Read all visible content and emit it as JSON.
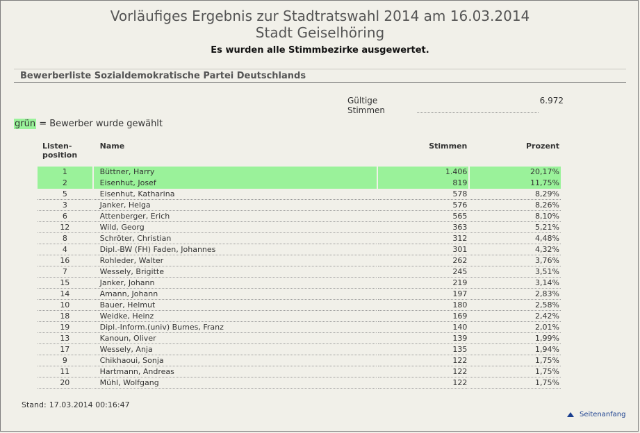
{
  "header": {
    "title": "Vorläufiges Ergebnis zur Stadtratswahl 2014 am 16.03.2014",
    "subtitle": "Stadt Geiselhöring",
    "status": "Es wurden alle Stimmbezirke ausgewertet."
  },
  "section": {
    "title": "Bewerberliste Sozialdemokratische Partei Deutschlands"
  },
  "valid_votes": {
    "label": "Gültige Stimmen",
    "value": "6.972"
  },
  "legend": {
    "highlight_word": "grün",
    "text": " = Bewerber wurde gewählt",
    "highlight_color": "#9af29a"
  },
  "table": {
    "headers": {
      "position_line1": "Listen-",
      "position_line2": "position",
      "name": "Name",
      "votes": "Stimmen",
      "percent": "Prozent"
    },
    "rows": [
      {
        "pos": "1",
        "name": "Büttner, Harry",
        "votes": "1.406",
        "percent": "20,17%",
        "elected": true
      },
      {
        "pos": "2",
        "name": "Eisenhut, Josef",
        "votes": "819",
        "percent": "11,75%",
        "elected": true
      },
      {
        "pos": "5",
        "name": "Eisenhut, Katharina",
        "votes": "578",
        "percent": "8,29%",
        "elected": false
      },
      {
        "pos": "3",
        "name": "Janker, Helga",
        "votes": "576",
        "percent": "8,26%",
        "elected": false
      },
      {
        "pos": "6",
        "name": "Attenberger, Erich",
        "votes": "565",
        "percent": "8,10%",
        "elected": false
      },
      {
        "pos": "12",
        "name": "Wild, Georg",
        "votes": "363",
        "percent": "5,21%",
        "elected": false
      },
      {
        "pos": "8",
        "name": "Schröter, Christian",
        "votes": "312",
        "percent": "4,48%",
        "elected": false
      },
      {
        "pos": "4",
        "name": "Dipl.-BW (FH) Faden, Johannes",
        "votes": "301",
        "percent": "4,32%",
        "elected": false
      },
      {
        "pos": "16",
        "name": "Rohleder, Walter",
        "votes": "262",
        "percent": "3,76%",
        "elected": false
      },
      {
        "pos": "7",
        "name": "Wessely, Brigitte",
        "votes": "245",
        "percent": "3,51%",
        "elected": false
      },
      {
        "pos": "15",
        "name": "Janker, Johann",
        "votes": "219",
        "percent": "3,14%",
        "elected": false
      },
      {
        "pos": "14",
        "name": "Amann, Johann",
        "votes": "197",
        "percent": "2,83%",
        "elected": false
      },
      {
        "pos": "10",
        "name": "Bauer, Helmut",
        "votes": "180",
        "percent": "2,58%",
        "elected": false
      },
      {
        "pos": "18",
        "name": "Weidke, Heinz",
        "votes": "169",
        "percent": "2,42%",
        "elected": false
      },
      {
        "pos": "19",
        "name": "Dipl.-Inform.(univ) Bumes, Franz",
        "votes": "140",
        "percent": "2,01%",
        "elected": false
      },
      {
        "pos": "13",
        "name": "Kanoun, Oliver",
        "votes": "139",
        "percent": "1,99%",
        "elected": false
      },
      {
        "pos": "17",
        "name": "Wessely, Anja",
        "votes": "135",
        "percent": "1,94%",
        "elected": false
      },
      {
        "pos": "9",
        "name": "Chikhaoui, Sonja",
        "votes": "122",
        "percent": "1,75%",
        "elected": false
      },
      {
        "pos": "11",
        "name": "Hartmann, Andreas",
        "votes": "122",
        "percent": "1,75%",
        "elected": false
      },
      {
        "pos": "20",
        "name": "Mühl, Wolfgang",
        "votes": "122",
        "percent": "1,75%",
        "elected": false
      }
    ]
  },
  "footer": {
    "stand_label": "Stand:",
    "stand_value": "17.03.2014 00:16:47",
    "top_link": "Seitenanfang",
    "top_link_icon": "arrow-up-icon"
  }
}
